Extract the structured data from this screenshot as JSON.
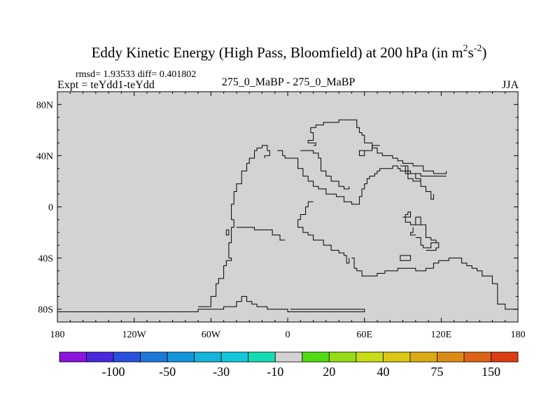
{
  "chart_data": {
    "type": "heatmap",
    "title": {
      "main": "Eddy Kinetic Energy (High Pass, Bloomfield) at 200 hPa (in m",
      "sup1": "2",
      "mid": "s",
      "sup2": "-2",
      "end": ")"
    },
    "stats": "rmsd= 1.93533 diff= 0.401802",
    "experiment": "Expt = teYdd1-teYdd",
    "subtitle": "275_0_MaBP - 275_0_MaBP",
    "season": "JJA",
    "fill_value": 0,
    "fill_color": "#d3d3d3",
    "x_range": [
      -180,
      180
    ],
    "y_range": [
      -90,
      90
    ],
    "x_ticks": [
      {
        "value": -180,
        "label": "180"
      },
      {
        "value": -120,
        "label": "120W"
      },
      {
        "value": -60,
        "label": "60W"
      },
      {
        "value": 0,
        "label": "0"
      },
      {
        "value": 60,
        "label": "60E"
      },
      {
        "value": 120,
        "label": "120E"
      },
      {
        "value": 180,
        "label": "180"
      }
    ],
    "y_ticks": [
      {
        "value": 80,
        "label": "80N"
      },
      {
        "value": 40,
        "label": "40N"
      },
      {
        "value": 0,
        "label": "0"
      },
      {
        "value": -40,
        "label": "40S"
      },
      {
        "value": -80,
        "label": "80S"
      }
    ],
    "coastlines": [
      [
        [
          -184,
          -82
        ],
        [
          -70,
          -82
        ],
        [
          -70,
          -80
        ],
        [
          -50,
          -80
        ],
        [
          -50,
          -78
        ],
        [
          -40,
          -78
        ],
        [
          -40,
          -74
        ],
        [
          -36,
          -74
        ],
        [
          -36,
          -70
        ],
        [
          -32,
          -70
        ],
        [
          -32,
          -74
        ],
        [
          -28,
          -74
        ],
        [
          -28,
          -76
        ],
        [
          -24,
          -76
        ],
        [
          -24,
          -78
        ],
        [
          -16,
          -78
        ],
        [
          -16,
          -80
        ],
        [
          0,
          -80
        ],
        [
          0,
          -82
        ],
        [
          60,
          -82
        ],
        [
          60,
          -80
        ],
        [
          2,
          -80
        ]
      ],
      [
        [
          -184,
          -90
        ],
        [
          -176,
          -90
        ]
      ],
      [
        [
          -70,
          -78
        ],
        [
          -60,
          -78
        ],
        [
          -60,
          -70
        ],
        [
          -56,
          -70
        ],
        [
          -56,
          -60
        ],
        [
          -54,
          -60
        ],
        [
          -54,
          -56
        ],
        [
          -50,
          -56
        ],
        [
          -50,
          -46
        ],
        [
          -48,
          -46
        ],
        [
          -48,
          -42
        ],
        [
          -44,
          -42
        ],
        [
          -44,
          -40
        ],
        [
          -46,
          -40
        ],
        [
          -46,
          -28
        ],
        [
          -44,
          -28
        ],
        [
          -44,
          -16
        ],
        [
          -42,
          -16
        ],
        [
          -42,
          -10
        ],
        [
          -44,
          -10
        ],
        [
          -44,
          2
        ],
        [
          -42,
          2
        ],
        [
          -42,
          12
        ],
        [
          -40,
          12
        ],
        [
          -40,
          18
        ],
        [
          -36,
          18
        ],
        [
          -36,
          28
        ],
        [
          -32,
          28
        ],
        [
          -32,
          34
        ],
        [
          -30,
          34
        ],
        [
          -30,
          38
        ],
        [
          -26,
          38
        ],
        [
          -26,
          44
        ],
        [
          -24,
          44
        ],
        [
          -24,
          46
        ],
        [
          -20,
          46
        ],
        [
          -20,
          48
        ],
        [
          -16,
          48
        ],
        [
          -16,
          44
        ],
        [
          -14,
          44
        ],
        [
          -14,
          40
        ],
        [
          -18,
          40
        ],
        [
          -18,
          38
        ]
      ],
      [
        [
          -48,
          -18
        ],
        [
          -48,
          -22
        ],
        [
          -46,
          -22
        ],
        [
          -46,
          -18
        ],
        [
          -48,
          -18
        ]
      ],
      [
        [
          -40,
          -16
        ],
        [
          -26,
          -16
        ],
        [
          -26,
          -18
        ],
        [
          -12,
          -18
        ],
        [
          -12,
          -22
        ],
        [
          -6,
          -22
        ],
        [
          -6,
          -26
        ],
        [
          -2,
          -26
        ]
      ],
      [
        [
          -8,
          44
        ],
        [
          -4,
          44
        ],
        [
          -4,
          40
        ],
        [
          -2,
          40
        ],
        [
          -2,
          38
        ],
        [
          8,
          38
        ],
        [
          8,
          30
        ],
        [
          12,
          30
        ],
        [
          12,
          24
        ],
        [
          16,
          24
        ],
        [
          16,
          20
        ],
        [
          20,
          20
        ],
        [
          20,
          16
        ],
        [
          24,
          16
        ],
        [
          24,
          14
        ],
        [
          30,
          14
        ],
        [
          30,
          10
        ],
        [
          38,
          10
        ],
        [
          38,
          8
        ],
        [
          44,
          8
        ],
        [
          44,
          4
        ],
        [
          48,
          4
        ]
      ],
      [
        [
          10,
          44
        ],
        [
          20,
          44
        ],
        [
          20,
          42
        ],
        [
          24,
          42
        ],
        [
          24,
          38
        ],
        [
          26,
          38
        ],
        [
          26,
          28
        ],
        [
          30,
          28
        ],
        [
          30,
          24
        ],
        [
          34,
          24
        ],
        [
          34,
          20
        ],
        [
          40,
          20
        ],
        [
          40,
          16
        ],
        [
          44,
          16
        ],
        [
          44,
          14
        ],
        [
          48,
          14
        ],
        [
          48,
          16
        ]
      ],
      [
        [
          20,
          4
        ],
        [
          16,
          4
        ],
        [
          16,
          0
        ],
        [
          14,
          0
        ],
        [
          14,
          -6
        ],
        [
          10,
          -6
        ],
        [
          10,
          -10
        ],
        [
          8,
          -10
        ],
        [
          8,
          -16
        ],
        [
          12,
          -16
        ],
        [
          12,
          -20
        ],
        [
          16,
          -20
        ],
        [
          16,
          -22
        ],
        [
          20,
          -22
        ],
        [
          20,
          -26
        ],
        [
          28,
          -26
        ],
        [
          28,
          -30
        ],
        [
          34,
          -30
        ],
        [
          34,
          -34
        ],
        [
          40,
          -34
        ],
        [
          40,
          -36
        ],
        [
          44,
          -36
        ],
        [
          44,
          -38
        ],
        [
          46,
          -38
        ],
        [
          46,
          -44
        ],
        [
          48,
          -44
        ],
        [
          48,
          -40
        ]
      ],
      [
        [
          20,
          48
        ],
        [
          22,
          48
        ],
        [
          22,
          50
        ],
        [
          16,
          50
        ],
        [
          16,
          52
        ],
        [
          20,
          52
        ],
        [
          20,
          56
        ],
        [
          20,
          58
        ],
        [
          18,
          58
        ],
        [
          18,
          62
        ],
        [
          22,
          62
        ],
        [
          22,
          64
        ],
        [
          28,
          64
        ],
        [
          28,
          66
        ],
        [
          40,
          66
        ],
        [
          40,
          68
        ],
        [
          54,
          68
        ],
        [
          54,
          62
        ],
        [
          56,
          62
        ],
        [
          56,
          58
        ],
        [
          58,
          58
        ],
        [
          58,
          56
        ],
        [
          60,
          56
        ],
        [
          60,
          50
        ],
        [
          64,
          50
        ],
        [
          64,
          50
        ],
        [
          66,
          50
        ],
        [
          66,
          46
        ],
        [
          70,
          46
        ],
        [
          70,
          42
        ],
        [
          74,
          42
        ],
        [
          74,
          40
        ],
        [
          82,
          40
        ],
        [
          82,
          38
        ],
        [
          86,
          38
        ],
        [
          86,
          36
        ],
        [
          90,
          36
        ],
        [
          90,
          34
        ],
        [
          98,
          34
        ],
        [
          98,
          32
        ],
        [
          106,
          32
        ],
        [
          106,
          28
        ],
        [
          114,
          28
        ],
        [
          114,
          26
        ],
        [
          124,
          26
        ],
        [
          124,
          28
        ]
      ],
      [
        [
          48,
          4
        ],
        [
          50,
          4
        ],
        [
          50,
          2
        ],
        [
          56,
          2
        ],
        [
          56,
          8
        ],
        [
          58,
          8
        ],
        [
          58,
          14
        ],
        [
          60,
          14
        ],
        [
          60,
          18
        ],
        [
          62,
          18
        ],
        [
          62,
          22
        ],
        [
          64,
          22
        ],
        [
          64,
          24
        ],
        [
          68,
          24
        ],
        [
          68,
          26
        ],
        [
          70,
          26
        ],
        [
          70,
          28
        ],
        [
          72,
          28
        ],
        [
          72,
          30
        ],
        [
          82,
          30
        ],
        [
          82,
          32
        ],
        [
          86,
          32
        ],
        [
          86,
          30
        ],
        [
          88,
          30
        ],
        [
          88,
          28
        ],
        [
          94,
          28
        ],
        [
          94,
          26
        ],
        [
          104,
          26
        ],
        [
          104,
          24
        ],
        [
          124,
          24
        ]
      ],
      [
        [
          50,
          -40
        ],
        [
          52,
          -40
        ],
        [
          52,
          -48
        ],
        [
          54,
          -48
        ],
        [
          54,
          -50
        ],
        [
          58,
          -50
        ],
        [
          58,
          -54
        ],
        [
          70,
          -54
        ],
        [
          70,
          -52
        ],
        [
          76,
          -52
        ],
        [
          76,
          -50
        ],
        [
          86,
          -50
        ],
        [
          86,
          -48
        ],
        [
          100,
          -48
        ],
        [
          100,
          -50
        ],
        [
          108,
          -50
        ],
        [
          108,
          -48
        ],
        [
          114,
          -48
        ],
        [
          114,
          -44
        ],
        [
          118,
          -44
        ],
        [
          118,
          -42
        ],
        [
          126,
          -42
        ],
        [
          126,
          -40
        ],
        [
          136,
          -40
        ],
        [
          136,
          -44
        ],
        [
          140,
          -44
        ],
        [
          140,
          -46
        ],
        [
          144,
          -46
        ],
        [
          144,
          -48
        ],
        [
          148,
          -48
        ],
        [
          148,
          -50
        ],
        [
          152,
          -50
        ],
        [
          152,
          -54
        ],
        [
          160,
          -54
        ],
        [
          160,
          -60
        ],
        [
          164,
          -60
        ],
        [
          164,
          -76
        ],
        [
          170,
          -76
        ],
        [
          170,
          -80
        ],
        [
          180,
          -80
        ]
      ],
      [
        [
          96,
          -42
        ],
        [
          88,
          -42
        ],
        [
          88,
          -38
        ],
        [
          96,
          -38
        ],
        [
          96,
          -42
        ]
      ],
      [
        [
          90,
          -8
        ],
        [
          92,
          -8
        ],
        [
          92,
          -6
        ],
        [
          94,
          -6
        ],
        [
          94,
          -4
        ],
        [
          96,
          -4
        ],
        [
          96,
          -8
        ],
        [
          92,
          -8
        ],
        [
          92,
          -12
        ],
        [
          96,
          -12
        ],
        [
          96,
          -14
        ],
        [
          100,
          -14
        ]
      ],
      [
        [
          98,
          -16
        ],
        [
          98,
          -20
        ],
        [
          96,
          -20
        ],
        [
          96,
          -22
        ],
        [
          100,
          -22
        ]
      ],
      [
        [
          100,
          -8
        ],
        [
          100,
          -14
        ],
        [
          104,
          -14
        ]
      ],
      [
        [
          100,
          -24
        ],
        [
          104,
          -24
        ],
        [
          104,
          -30
        ],
        [
          106,
          -30
        ],
        [
          106,
          -32
        ],
        [
          112,
          -32
        ],
        [
          112,
          -28
        ],
        [
          116,
          -28
        ],
        [
          116,
          -26
        ],
        [
          112,
          -26
        ],
        [
          112,
          -24
        ],
        [
          108,
          -24
        ],
        [
          108,
          -14
        ],
        [
          104,
          -14
        ],
        [
          104,
          -8
        ],
        [
          100,
          -8
        ]
      ],
      [
        [
          108,
          -34
        ],
        [
          116,
          -34
        ],
        [
          116,
          -32
        ],
        [
          118,
          -32
        ],
        [
          118,
          -28
        ],
        [
          116,
          -28
        ]
      ],
      [
        [
          88,
          32
        ],
        [
          92,
          32
        ],
        [
          92,
          26
        ],
        [
          94,
          26
        ],
        [
          94,
          22
        ],
        [
          98,
          22
        ],
        [
          98,
          20
        ],
        [
          104,
          20
        ],
        [
          104,
          16
        ],
        [
          108,
          16
        ],
        [
          108,
          12
        ],
        [
          112,
          12
        ],
        [
          112,
          6
        ],
        [
          114,
          6
        ],
        [
          114,
          10
        ]
      ],
      [
        [
          92,
          32
        ],
        [
          94,
          32
        ],
        [
          94,
          28
        ],
        [
          96,
          28
        ],
        [
          96,
          26
        ],
        [
          100,
          26
        ],
        [
          100,
          22
        ],
        [
          104,
          22
        ],
        [
          104,
          20
        ]
      ],
      [
        [
          72,
          48
        ],
        [
          66,
          48
        ],
        [
          66,
          44
        ],
        [
          60,
          44
        ],
        [
          60,
          40
        ],
        [
          56,
          40
        ],
        [
          56,
          44
        ],
        [
          60,
          44
        ]
      ]
    ],
    "colorbar": {
      "colors": [
        "#8c14dc",
        "#4b28dc",
        "#2850dc",
        "#1e78dc",
        "#1496dc",
        "#14b4dc",
        "#14c8dc",
        "#14dcb4",
        "#d3d3d3",
        "#50dc14",
        "#96dc14",
        "#c8dc14",
        "#dcc814",
        "#dcaa14",
        "#dc8c14",
        "#dc6414",
        "#dc3c14"
      ],
      "labels": [
        {
          "after_box": 1,
          "text": "-100"
        },
        {
          "after_box": 3,
          "text": "-50"
        },
        {
          "after_box": 5,
          "text": "-30"
        },
        {
          "after_box": 7,
          "text": "-10"
        },
        {
          "after_box": 9,
          "text": "20"
        },
        {
          "after_box": 11,
          "text": "40"
        },
        {
          "after_box": 13,
          "text": "75"
        },
        {
          "after_box": 15,
          "text": "150"
        }
      ]
    }
  }
}
